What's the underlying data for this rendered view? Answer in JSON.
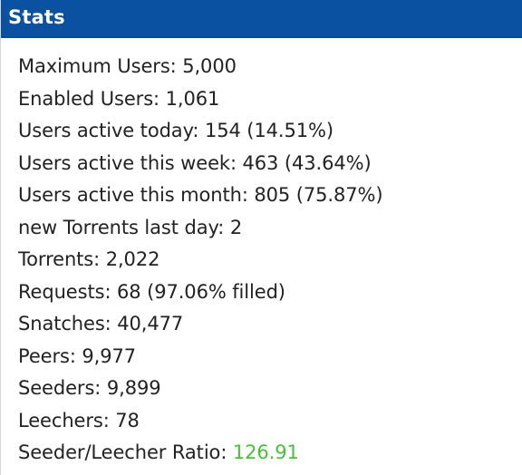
{
  "colors": {
    "header_bg": "#0a52a1",
    "header_text": "#ffffff",
    "text": "#222222",
    "ratio_good": "#45c337"
  },
  "panel": {
    "title": "Stats"
  },
  "stats": [
    {
      "label": "Maximum Users",
      "value": "5,000"
    },
    {
      "label": "Enabled Users",
      "value": "1,061"
    },
    {
      "label": "Users active today",
      "value": "154 (14.51%)"
    },
    {
      "label": "Users active this week",
      "value": "463 (43.64%)"
    },
    {
      "label": "Users active this month",
      "value": "805 (75.87%)"
    },
    {
      "label": "new Torrents last day",
      "value": "2"
    },
    {
      "label": "Torrents",
      "value": "2,022"
    },
    {
      "label": "Requests",
      "value": "68 (97.06% filled)"
    },
    {
      "label": "Snatches",
      "value": "40,477"
    },
    {
      "label": "Peers",
      "value": "9,977"
    },
    {
      "label": "Seeders",
      "value": "9,899"
    },
    {
      "label": "Leechers",
      "value": "78"
    },
    {
      "label": "Seeder/Leecher Ratio",
      "value": "126.91"
    }
  ]
}
